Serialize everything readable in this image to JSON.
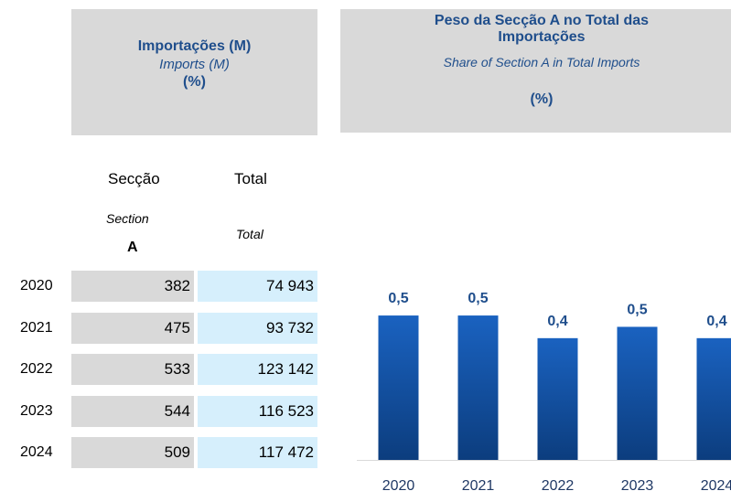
{
  "left_header": {
    "title": "Importações (M)",
    "subtitle": "Imports (M)",
    "unit": "(%)"
  },
  "right_header": {
    "title": "Peso da Secção A no Total das Importações",
    "subtitle": "Share of Section A in Total Imports",
    "unit": "(%)"
  },
  "table": {
    "columns": [
      {
        "name": "Secção",
        "english": "Section",
        "code": "A"
      },
      {
        "name": "Total",
        "english": "Total"
      }
    ],
    "rows": [
      [
        "2020",
        "382",
        "74 943"
      ],
      [
        "2021",
        "475",
        "93 732"
      ],
      [
        "2022",
        "533",
        "123 142"
      ],
      [
        "2023",
        "544",
        "116 523"
      ],
      [
        "2024",
        "509",
        "117 472"
      ]
    ]
  },
  "chart_data": {
    "type": "bar",
    "categories": [
      "2020",
      "2021",
      "2022",
      "2023",
      "2024"
    ],
    "values": [
      0.51,
      0.51,
      0.43,
      0.47,
      0.43
    ],
    "value_labels": [
      "0,5",
      "0,5",
      "0,4",
      "0,5",
      "0,4"
    ],
    "color": "#1559b0",
    "ylim": [
      0,
      0.62
    ]
  }
}
